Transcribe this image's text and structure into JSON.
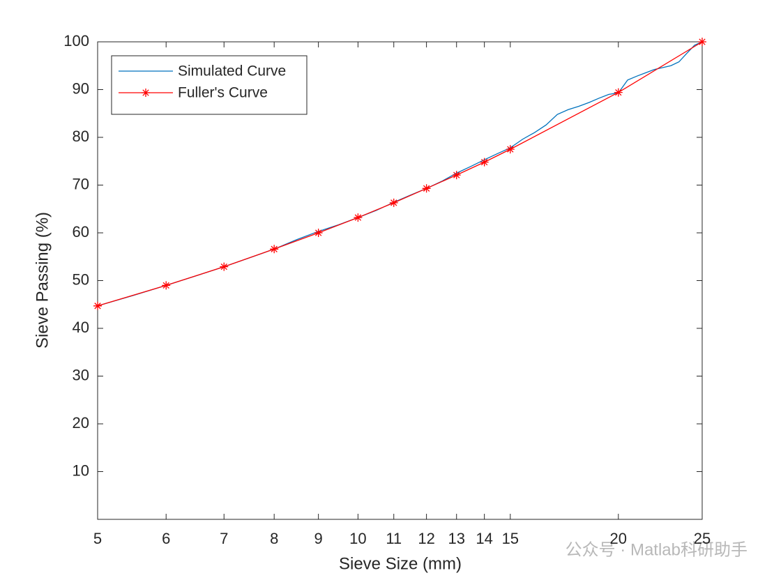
{
  "chart_data": {
    "type": "line",
    "xlabel": "Sieve Size (mm)",
    "ylabel": "Sieve Passing (%)",
    "xscale": "log",
    "xlim": [
      5,
      25
    ],
    "xticks": [
      5,
      6,
      7,
      8,
      9,
      10,
      11,
      12,
      13,
      14,
      15,
      20,
      25
    ],
    "ylim": [
      0,
      100
    ],
    "yticks": [
      10,
      20,
      30,
      40,
      50,
      60,
      70,
      80,
      90,
      100
    ],
    "legend": "upper left",
    "series": [
      {
        "name": "Simulated Curve",
        "color": "#0072BD",
        "marker": "none",
        "x": [
          5,
          5.5,
          6,
          6.5,
          7,
          7.5,
          8,
          8.5,
          9,
          9.5,
          10,
          10.5,
          11,
          11.5,
          12,
          12.5,
          13,
          13.5,
          14,
          14.5,
          15,
          15.5,
          16,
          16.5,
          17,
          17.5,
          18,
          18.5,
          19,
          19.5,
          20,
          20.5,
          21,
          21.5,
          22,
          22.5,
          23,
          23.5,
          24,
          24.5,
          25
        ],
        "values": [
          44.7,
          46.9,
          49.0,
          51.0,
          52.9,
          54.8,
          56.6,
          58.6,
          60.3,
          61.7,
          63.2,
          64.7,
          66.4,
          67.9,
          69.3,
          70.8,
          72.5,
          73.9,
          75.3,
          76.6,
          77.8,
          79.6,
          81.0,
          82.6,
          84.8,
          85.8,
          86.5,
          87.3,
          88.2,
          89.0,
          89.3,
          92.0,
          92.8,
          93.5,
          94.2,
          94.6,
          95.0,
          95.8,
          97.6,
          99.3,
          100
        ]
      },
      {
        "name": "Fuller's Curve",
        "color": "#FF0000",
        "marker": "asterisk",
        "x": [
          5,
          6,
          7,
          8,
          9,
          10,
          11,
          12,
          13,
          14,
          15,
          20,
          25
        ],
        "values": [
          44.7,
          49.0,
          52.9,
          56.6,
          60.0,
          63.2,
          66.3,
          69.3,
          72.1,
          74.8,
          77.5,
          89.4,
          100
        ]
      }
    ],
    "watermark": "公众号 · Matlab科研助手"
  }
}
